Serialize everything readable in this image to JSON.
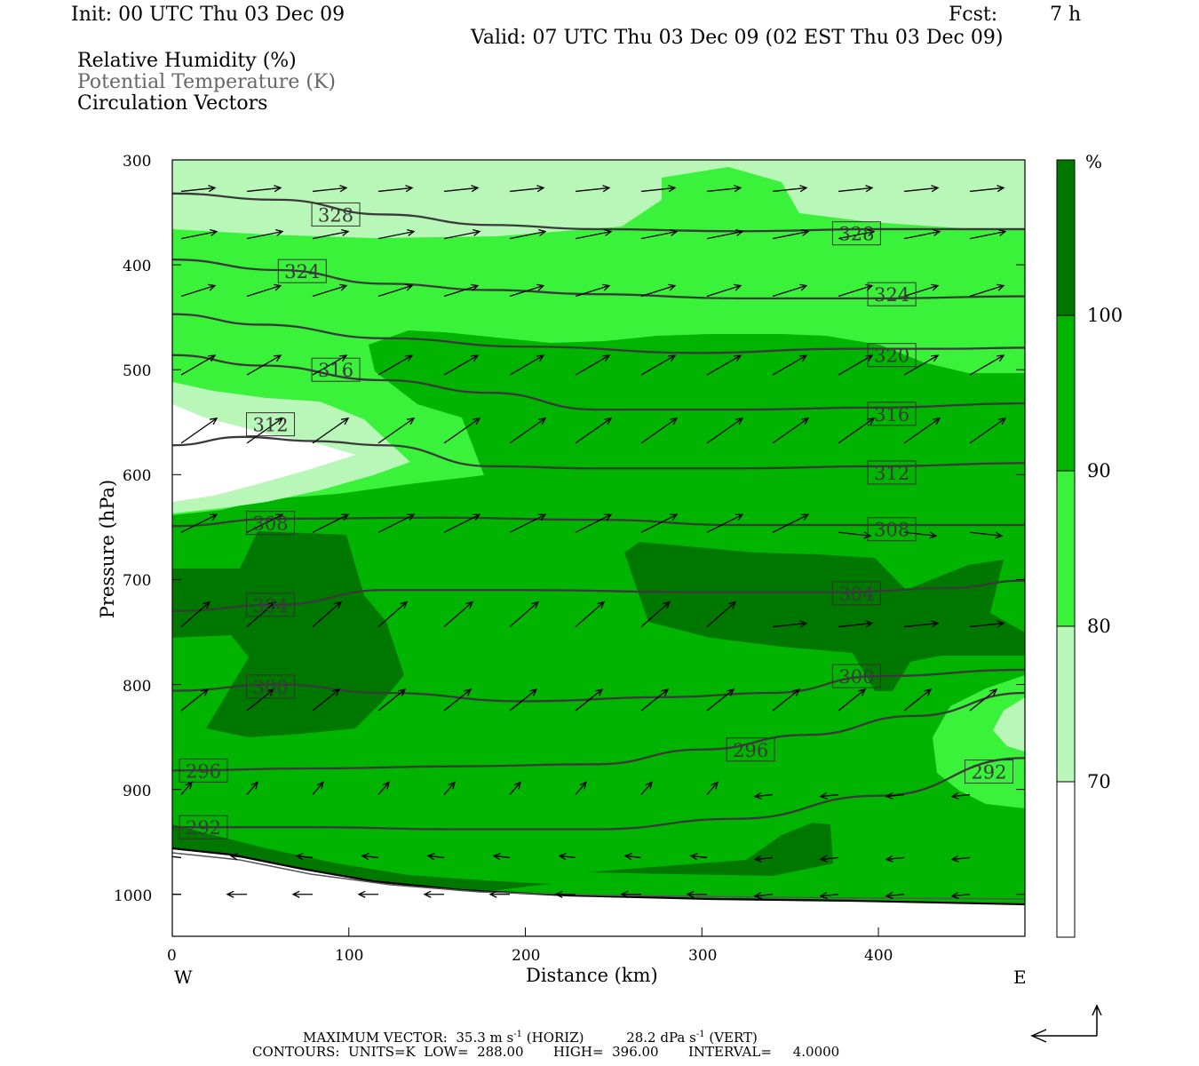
{
  "header": {
    "init": "Init: 00 UTC Thu 03 Dec 09",
    "fcst_label": "Fcst:",
    "fcst_value": "7 h",
    "valid": "Valid: 07 UTC Thu 03 Dec 09 (02 EST Thu 03 Dec 09)"
  },
  "fields": {
    "rh": "Relative Humidity (%)",
    "theta": "Potential Temperature (K)",
    "vectors": "Circulation Vectors"
  },
  "footer": {
    "max_vector_label": "MAXIMUM VECTOR:",
    "max_vector_horiz": "35.3 m s",
    "horiz_sup": "-1",
    "horiz_tag": "(HORIZ)",
    "max_vector_vert": "28.2 dPa s",
    "vert_sup": "-1",
    "vert_tag": "(VERT)",
    "contours": "CONTOURS:  UNITS=K  LOW=  288.00       HIGH=  396.00       INTERVAL=     4.0000"
  },
  "chart_data": {
    "type": "cross-section contour",
    "xlabel": "Distance (km)",
    "ylabel": "Pressure (hPa)",
    "xlim": [
      0,
      483
    ],
    "ylim": [
      1040,
      300
    ],
    "x_ticks": [
      0,
      100,
      200,
      300,
      400
    ],
    "y_ticks": [
      300,
      400,
      500,
      600,
      700,
      800,
      900,
      1000
    ],
    "left_label": "W",
    "right_label": "E",
    "colorbar": {
      "unit": "%",
      "levels": [
        70,
        80,
        90,
        100
      ],
      "colors": [
        "#ffffff",
        "#b9f7b9",
        "#3bf23b",
        "#00b400",
        "#007800"
      ]
    },
    "theta_contours": [
      {
        "label": "328",
        "points": [
          [
            0,
            332
          ],
          [
            60,
            338
          ],
          [
            120,
            352
          ],
          [
            180,
            362
          ],
          [
            240,
            366
          ],
          [
            320,
            368
          ],
          [
            400,
            366
          ],
          [
            483,
            366
          ]
        ],
        "labels_at": [
          [
            75,
            352
          ],
          [
            370,
            370
          ]
        ]
      },
      {
        "label": "324",
        "points": [
          [
            0,
            395
          ],
          [
            60,
            405
          ],
          [
            120,
            418
          ],
          [
            180,
            424
          ],
          [
            240,
            428
          ],
          [
            320,
            432
          ],
          [
            400,
            432
          ],
          [
            483,
            430
          ]
        ],
        "labels_at": [
          [
            56,
            406
          ],
          [
            390,
            428
          ]
        ]
      },
      {
        "label": "320",
        "points": [
          [
            0,
            447
          ],
          [
            50,
            457
          ],
          [
            120,
            470
          ],
          [
            200,
            478
          ],
          [
            300,
            484
          ],
          [
            380,
            480
          ],
          [
            440,
            480
          ],
          [
            483,
            479
          ]
        ],
        "labels_at": [
          [
            390,
            486
          ]
        ]
      },
      {
        "label": "316",
        "points": [
          [
            0,
            486
          ],
          [
            50,
            496
          ],
          [
            120,
            510
          ],
          [
            180,
            522
          ],
          [
            240,
            538
          ],
          [
            320,
            538
          ],
          [
            400,
            536
          ],
          [
            483,
            532
          ]
        ],
        "labels_at": [
          [
            75,
            500
          ],
          [
            390,
            542
          ]
        ]
      },
      {
        "label": "312",
        "points": [
          [
            0,
            572
          ],
          [
            40,
            564
          ],
          [
            80,
            568
          ],
          [
            120,
            572
          ],
          [
            180,
            592
          ],
          [
            240,
            594
          ],
          [
            320,
            594
          ],
          [
            400,
            592
          ],
          [
            483,
            589
          ]
        ],
        "labels_at": [
          [
            38,
            552
          ],
          [
            390,
            598
          ]
        ]
      },
      {
        "label": "308",
        "points": [
          [
            0,
            649
          ],
          [
            60,
            642
          ],
          [
            150,
            641
          ],
          [
            240,
            643
          ],
          [
            320,
            648
          ],
          [
            400,
            648
          ],
          [
            483,
            648
          ]
        ],
        "labels_at": [
          [
            38,
            646
          ],
          [
            390,
            652
          ]
        ]
      },
      {
        "label": "304",
        "points": [
          [
            0,
            730
          ],
          [
            60,
            724
          ],
          [
            120,
            710
          ],
          [
            200,
            710
          ],
          [
            300,
            712
          ],
          [
            380,
            712
          ],
          [
            440,
            708
          ],
          [
            483,
            701
          ]
        ],
        "labels_at": [
          [
            38,
            724
          ],
          [
            370,
            713
          ]
        ]
      },
      {
        "label": "300",
        "points": [
          [
            0,
            806
          ],
          [
            60,
            800
          ],
          [
            120,
            808
          ],
          [
            200,
            816
          ],
          [
            280,
            812
          ],
          [
            340,
            808
          ],
          [
            400,
            792
          ],
          [
            483,
            786
          ]
        ],
        "labels_at": [
          [
            38,
            802
          ],
          [
            370,
            792
          ]
        ]
      },
      {
        "label": "296",
        "points": [
          [
            0,
            882
          ],
          [
            80,
            880
          ],
          [
            160,
            878
          ],
          [
            240,
            876
          ],
          [
            300,
            862
          ],
          [
            360,
            848
          ],
          [
            420,
            830
          ],
          [
            483,
            808
          ]
        ],
        "labels_at": [
          [
            310,
            862
          ],
          [
            0,
            882
          ]
        ]
      },
      {
        "label": "292",
        "points": [
          [
            0,
            936
          ],
          [
            80,
            936
          ],
          [
            160,
            938
          ],
          [
            240,
            938
          ],
          [
            320,
            928
          ],
          [
            400,
            906
          ],
          [
            483,
            870
          ]
        ],
        "labels_at": [
          [
            0,
            936
          ],
          [
            445,
            883
          ]
        ]
      }
    ]
  }
}
